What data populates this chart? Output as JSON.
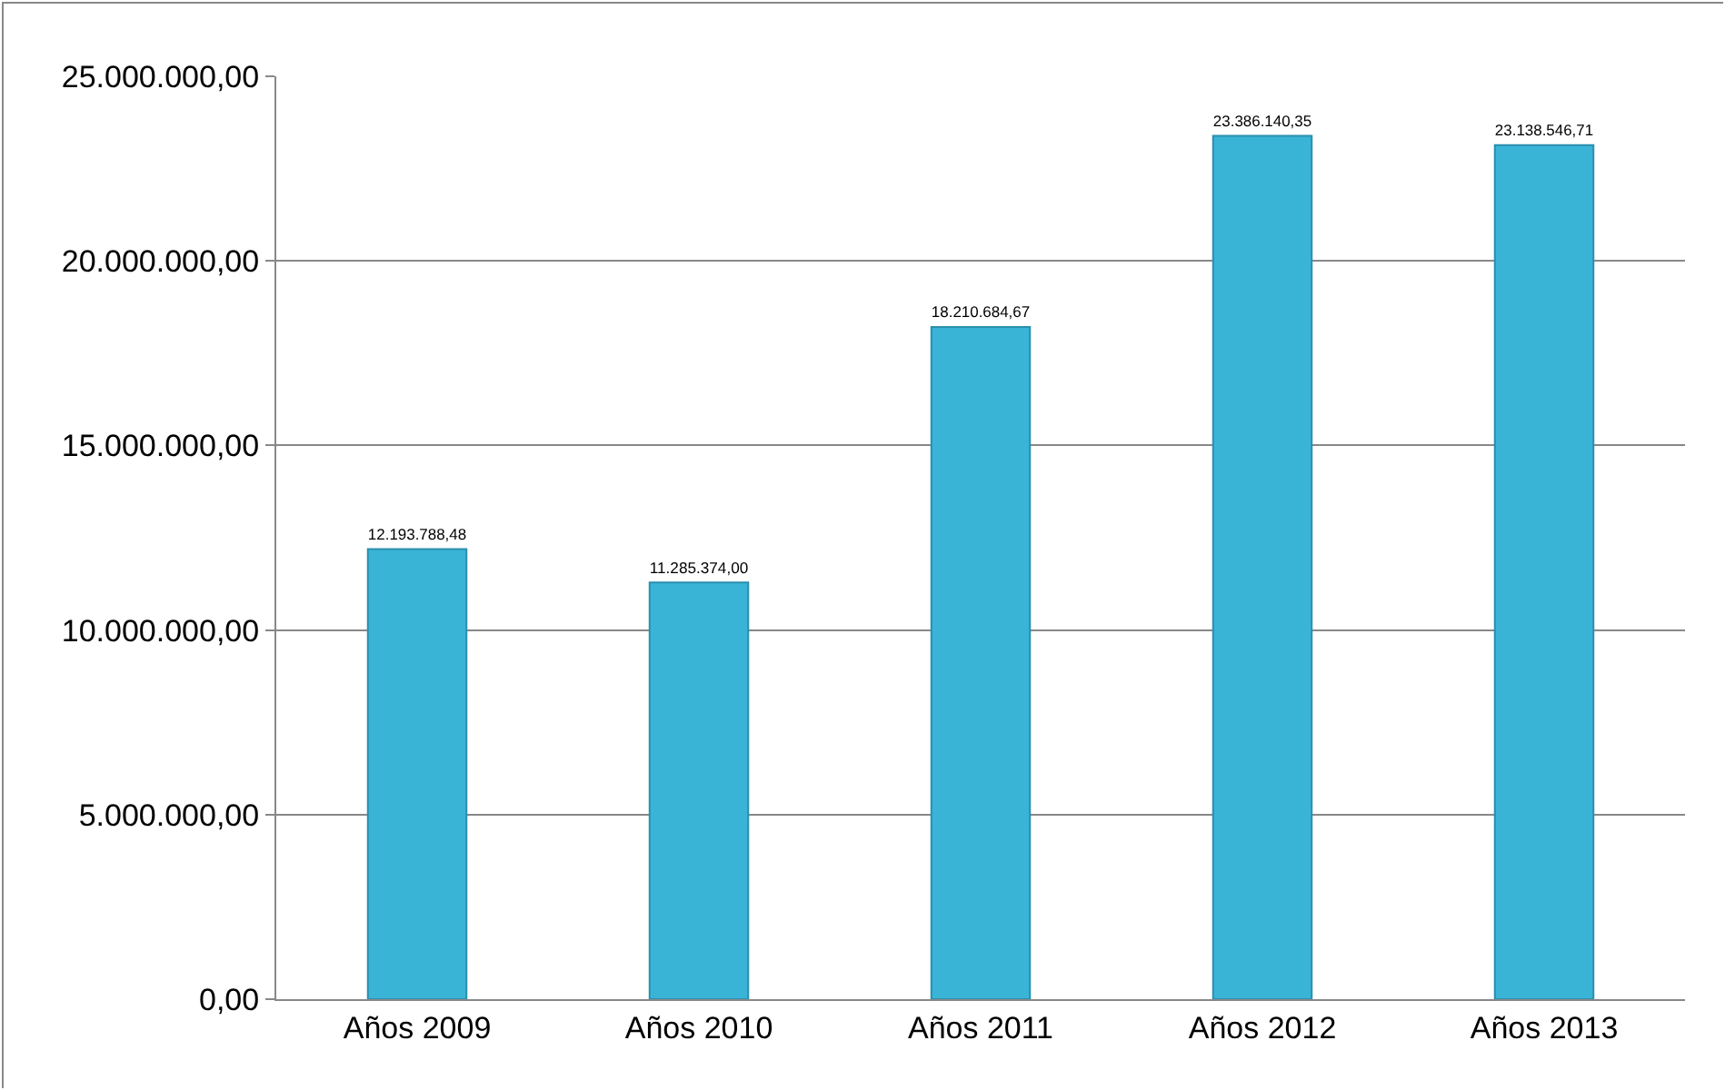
{
  "chart_data": {
    "type": "bar",
    "categories": [
      "Años 2009",
      "Años 2010",
      "Años 2011",
      "Años 2012",
      "Años 2013"
    ],
    "values": [
      12193788.48,
      11285374.0,
      18210684.67,
      23386140.35,
      23138546.71
    ],
    "value_labels": [
      "12.193.788,48",
      "11.285.374,00",
      "18.210.684,67",
      "23.386.140,35",
      "23.138.546,71"
    ],
    "color": "#3ab4d6",
    "ylim": [
      0,
      25000000
    ],
    "yticks": [
      {
        "value": 0,
        "label": "0,00"
      },
      {
        "value": 5000000,
        "label": "5.000.000,00"
      },
      {
        "value": 10000000,
        "label": "10.000.000,00"
      },
      {
        "value": 15000000,
        "label": "15.000.000,00"
      },
      {
        "value": 20000000,
        "label": "20.000.000,00"
      },
      {
        "value": 25000000,
        "label": "25.000.000,00"
      }
    ],
    "grid": "y"
  }
}
